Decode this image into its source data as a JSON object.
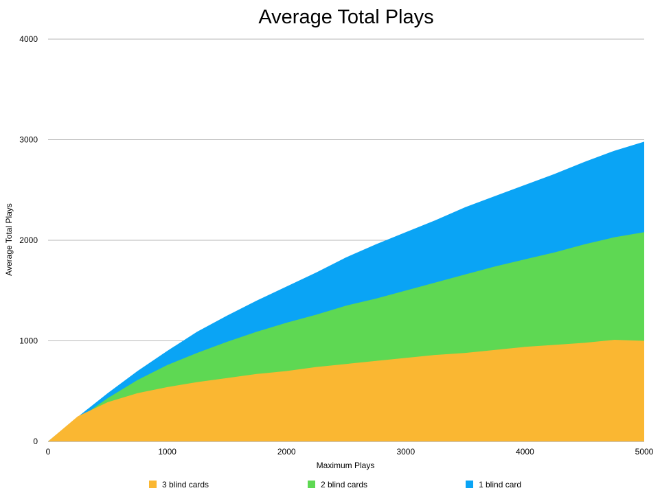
{
  "chart_data": {
    "type": "area",
    "stacked": false,
    "title": "Average Total Plays",
    "xlabel": "Maximum Plays",
    "ylabel": "Average Total Plays",
    "xlim": [
      0,
      5000
    ],
    "ylim": [
      0,
      4000
    ],
    "x_ticks": [
      "0",
      "1000",
      "2000",
      "3000",
      "4000",
      "5000"
    ],
    "y_ticks": [
      "0",
      "1000",
      "2000",
      "3000",
      "4000"
    ],
    "grid": "horizontal",
    "legend_position": "bottom",
    "series": [
      {
        "name": "1 blind card",
        "color": "#0aa4f5",
        "x": [
          0,
          250,
          500,
          750,
          1000,
          1250,
          1500,
          1750,
          2000,
          2250,
          2500,
          2750,
          3000,
          3250,
          3500,
          3750,
          4000,
          4250,
          4500,
          4750,
          5000
        ],
        "values": [
          0,
          245,
          480,
          700,
          900,
          1090,
          1250,
          1400,
          1540,
          1680,
          1830,
          1960,
          2080,
          2200,
          2330,
          2440,
          2550,
          2660,
          2780,
          2890,
          2980
        ]
      },
      {
        "name": "2 blind cards",
        "color": "#5ed853",
        "x": [
          0,
          250,
          500,
          750,
          1000,
          1250,
          1500,
          1750,
          2000,
          2250,
          2500,
          2750,
          3000,
          3250,
          3500,
          3750,
          4000,
          4250,
          4500,
          4750,
          5000
        ],
        "values": [
          0,
          220,
          430,
          610,
          760,
          880,
          990,
          1090,
          1180,
          1260,
          1350,
          1420,
          1500,
          1580,
          1660,
          1740,
          1810,
          1880,
          1960,
          2030,
          2080
        ]
      },
      {
        "name": "3 blind cards",
        "color": "#fab732",
        "x": [
          0,
          250,
          500,
          750,
          1000,
          1250,
          1500,
          1750,
          2000,
          2250,
          2500,
          2750,
          3000,
          3250,
          3500,
          3750,
          4000,
          4250,
          4500,
          4750,
          5000
        ],
        "values": [
          0,
          250,
          390,
          480,
          540,
          590,
          630,
          670,
          700,
          740,
          770,
          800,
          830,
          860,
          880,
          910,
          940,
          960,
          980,
          1010,
          1000
        ]
      }
    ],
    "legend": [
      "3 blind cards",
      "2 blind cards",
      "1 blind card"
    ]
  }
}
